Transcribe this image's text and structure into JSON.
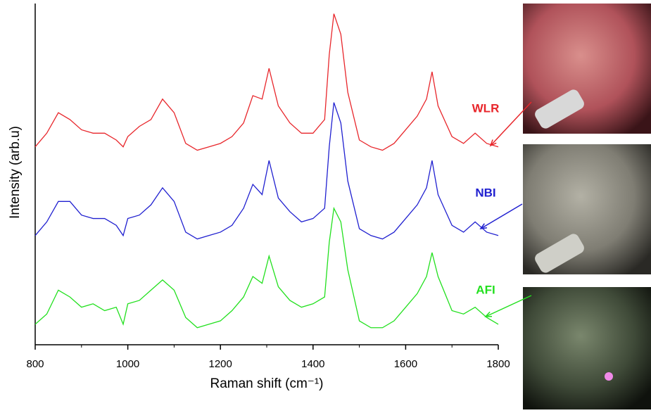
{
  "chart_data": {
    "type": "line",
    "xlabel": "Raman shift (cm⁻¹)",
    "ylabel": "Intensity (arb.u)",
    "x": [
      800,
      825,
      850,
      875,
      900,
      925,
      950,
      975,
      990,
      1000,
      1025,
      1050,
      1075,
      1100,
      1125,
      1150,
      1175,
      1200,
      1225,
      1250,
      1270,
      1290,
      1305,
      1325,
      1350,
      1375,
      1400,
      1425,
      1435,
      1445,
      1460,
      1475,
      1500,
      1525,
      1550,
      1575,
      1600,
      1625,
      1645,
      1657,
      1670,
      1700,
      1725,
      1750,
      1775,
      1800
    ],
    "series": [
      {
        "name": "WLR",
        "color": "#e8262b",
        "values": [
          58,
          62,
          68,
          66,
          63,
          62,
          62,
          60,
          58,
          61,
          64,
          66,
          72,
          68,
          59,
          57,
          58,
          59,
          61,
          65,
          73,
          72,
          81,
          70,
          65,
          62,
          62,
          66,
          85,
          97,
          91,
          74,
          60,
          58,
          57,
          59,
          63,
          67,
          72,
          80,
          70,
          61,
          59,
          62,
          59,
          58
        ]
      },
      {
        "name": "NBI",
        "color": "#2020d0",
        "values": [
          32,
          36,
          42,
          42,
          38,
          37,
          37,
          35,
          32,
          37,
          38,
          41,
          46,
          42,
          33,
          31,
          32,
          33,
          35,
          40,
          47,
          44,
          54,
          43,
          39,
          36,
          37,
          40,
          58,
          71,
          65,
          48,
          34,
          32,
          31,
          33,
          37,
          41,
          46,
          54,
          44,
          35,
          33,
          36,
          33,
          32
        ]
      },
      {
        "name": "AFI",
        "color": "#22e01e",
        "values": [
          6,
          9,
          16,
          14,
          11,
          12,
          10,
          11,
          6,
          12,
          13,
          16,
          19,
          16,
          8,
          5,
          6,
          7,
          10,
          14,
          20,
          18,
          26,
          17,
          13,
          11,
          12,
          14,
          30,
          40,
          36,
          22,
          7,
          5,
          5,
          7,
          11,
          15,
          20,
          27,
          20,
          10,
          9,
          11,
          8,
          6
        ]
      }
    ],
    "xlim": [
      800,
      1800
    ],
    "xticks": [
      800,
      1000,
      1200,
      1400,
      1600,
      1800
    ],
    "ylim": [
      0,
      100
    ]
  }
}
